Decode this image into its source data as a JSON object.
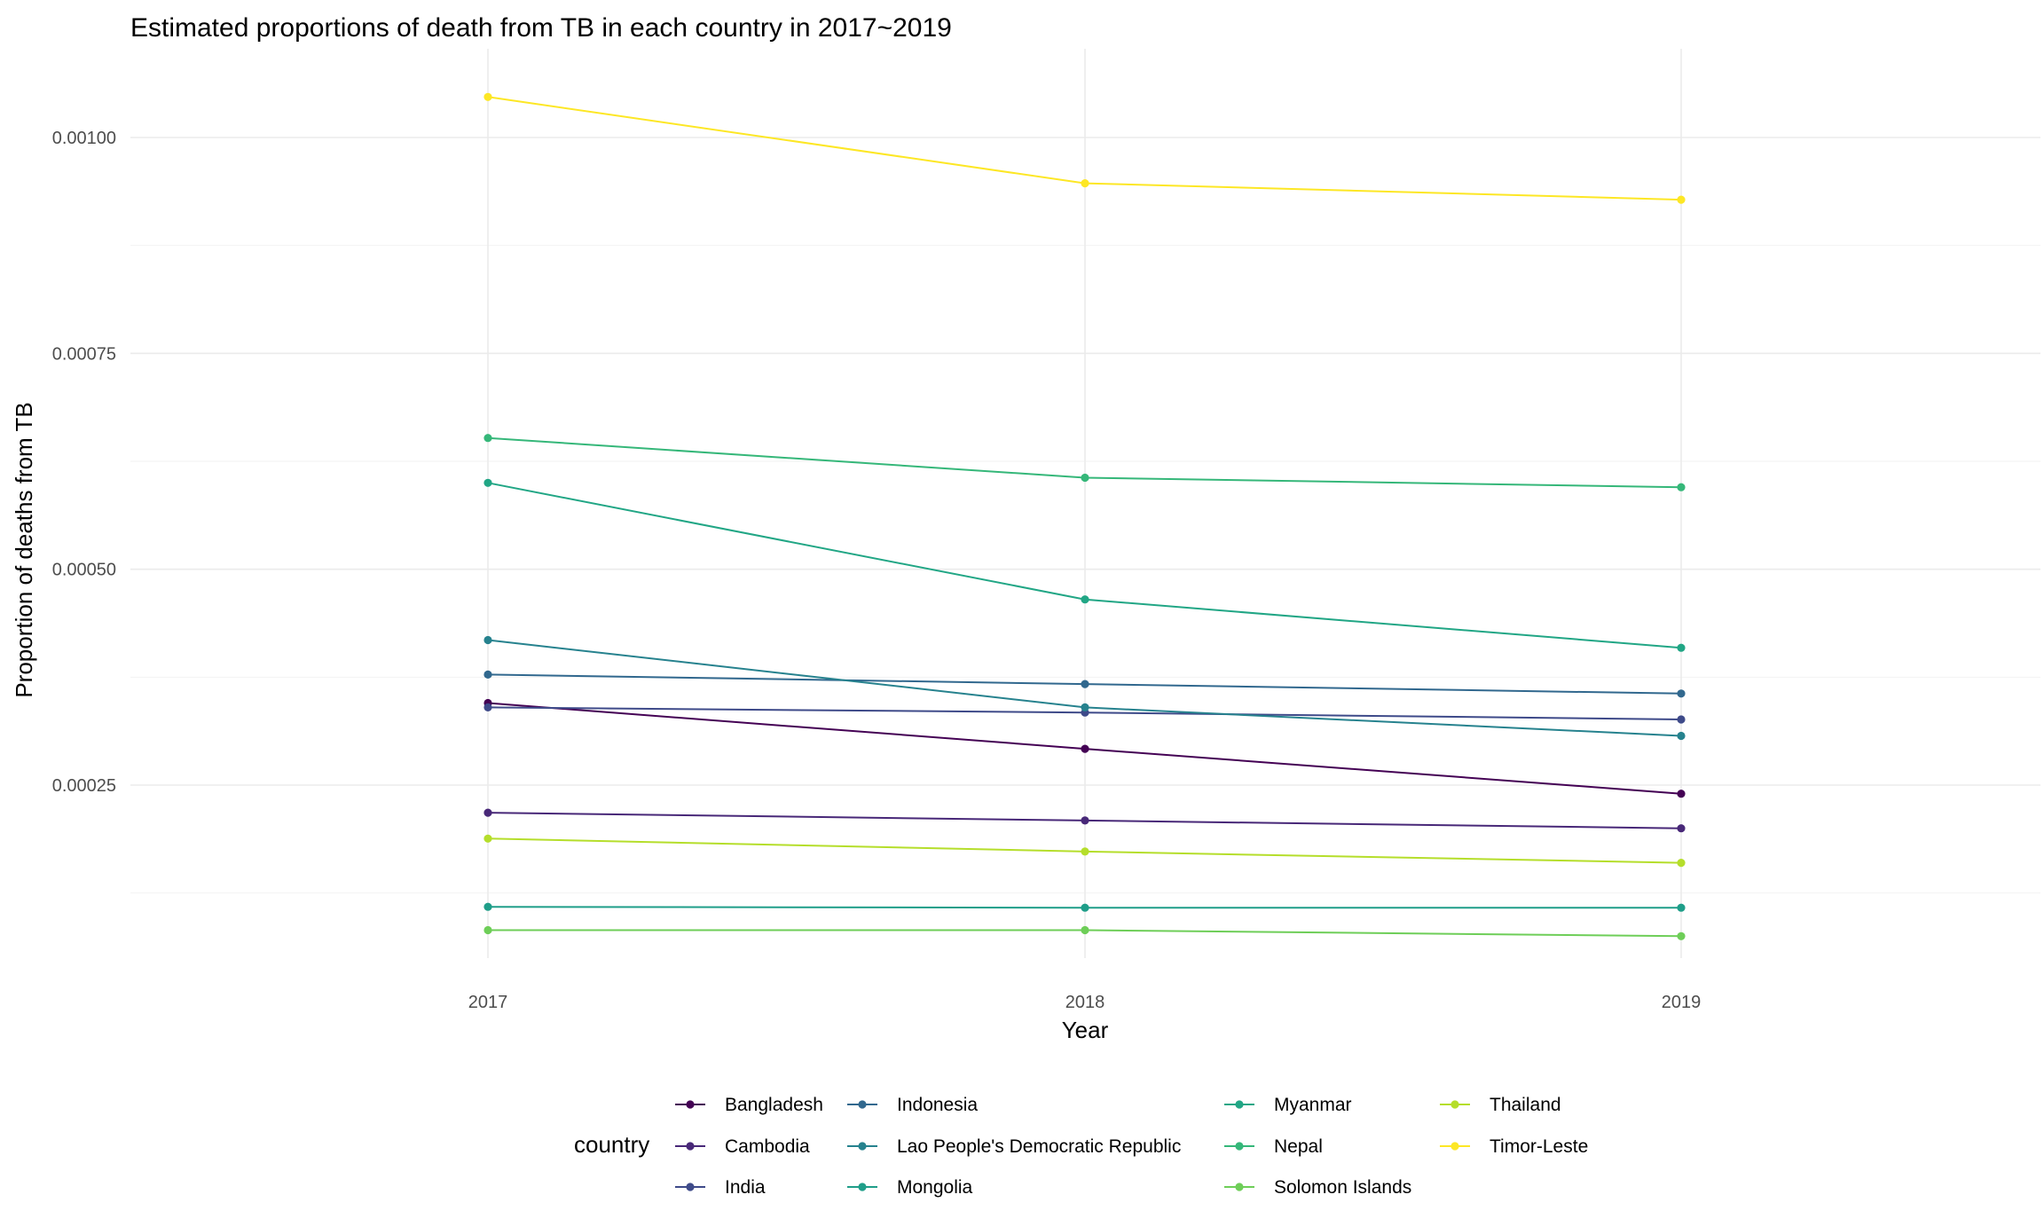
{
  "chart_data": {
    "type": "line",
    "title": "Estimated proportions of death from TB in each country in 2017~2019",
    "xlabel": "Year",
    "ylabel": "Proportion of deaths from TB",
    "x": [
      "2017",
      "2018",
      "2019"
    ],
    "y_ticks": [
      "0.00025",
      "0.00050",
      "0.00075",
      "0.00100"
    ],
    "y_tick_values": [
      0.00025,
      0.0005,
      0.00075,
      0.001
    ],
    "ylim": [
      0.0,
      0.00112
    ],
    "legend_title": "country",
    "legend_position": "bottom",
    "grid": true,
    "series": [
      {
        "name": "Bangladesh",
        "color": "#440154",
        "values": [
          0.000345,
          0.000292,
          0.00024
        ]
      },
      {
        "name": "Cambodia",
        "color": "#482878",
        "values": [
          0.000218,
          0.000209,
          0.0002
        ]
      },
      {
        "name": "India",
        "color": "#3e4a89",
        "values": [
          0.00034,
          0.000334,
          0.000326
        ]
      },
      {
        "name": "Indonesia",
        "color": "#31688e",
        "values": [
          0.000378,
          0.000367,
          0.000356
        ]
      },
      {
        "name": "Lao People's Democratic Republic",
        "color": "#26828e",
        "values": [
          0.000418,
          0.00034,
          0.000307
        ]
      },
      {
        "name": "Mongolia",
        "color": "#1f9e89",
        "values": [
          0.000109,
          0.000108,
          0.000108
        ]
      },
      {
        "name": "Myanmar",
        "color": "#21a685",
        "values": [
          0.0006,
          0.000465,
          0.000409
        ]
      },
      {
        "name": "Nepal",
        "color": "#35b779",
        "values": [
          0.000652,
          0.000606,
          0.000595
        ]
      },
      {
        "name": "Solomon Islands",
        "color": "#6ece58",
        "values": [
          8.2e-05,
          8.2e-05,
          7.5e-05
        ]
      },
      {
        "name": "Thailand",
        "color": "#b5de2b",
        "values": [
          0.000188,
          0.000173,
          0.00016
        ]
      },
      {
        "name": "Timor-Leste",
        "color": "#fde725",
        "values": [
          0.001047,
          0.000947,
          0.000928
        ]
      }
    ]
  }
}
